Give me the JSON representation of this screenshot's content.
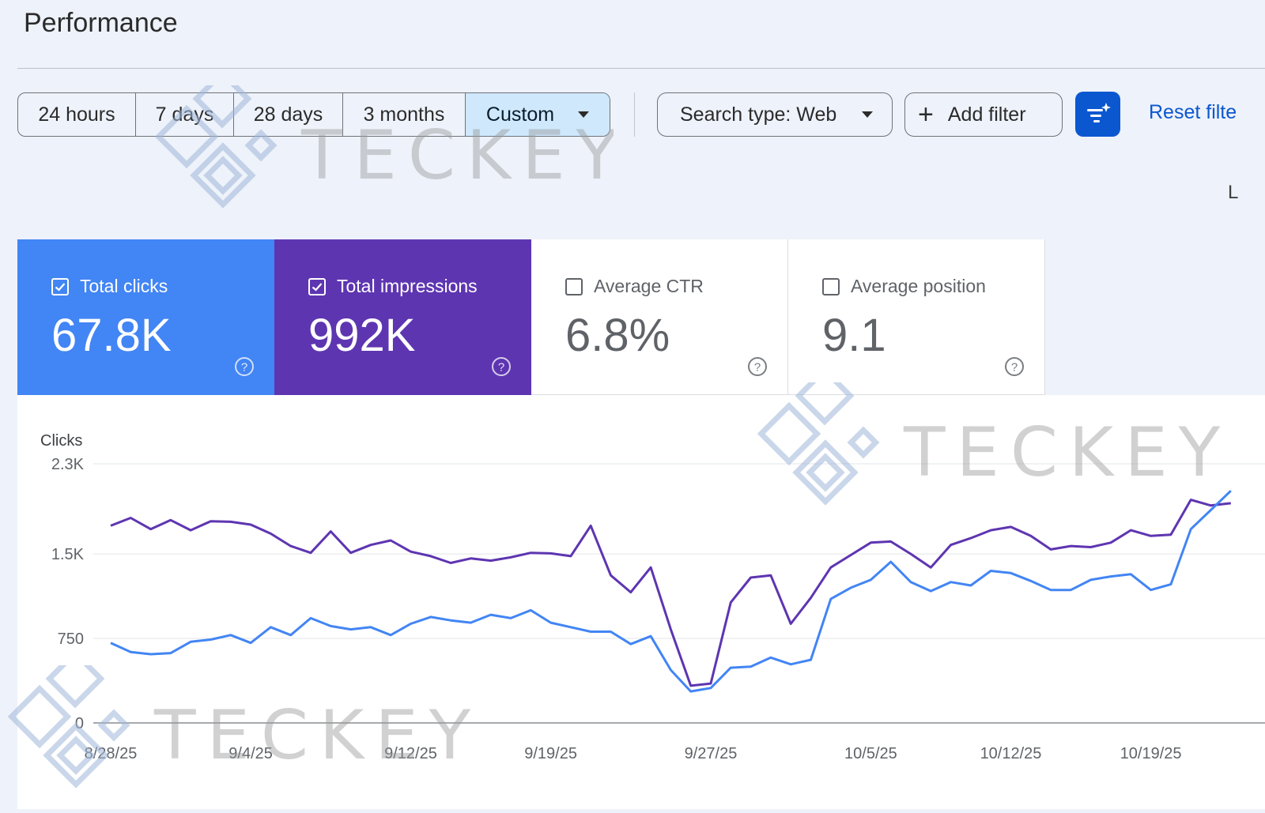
{
  "page": {
    "title": "Performance"
  },
  "toolbar": {
    "ranges": [
      {
        "label": "24 hours"
      },
      {
        "label": "7 days"
      },
      {
        "label": "28 days"
      },
      {
        "label": "3 months"
      },
      {
        "label": "Custom",
        "selected": true
      }
    ],
    "search_type": "Search type: Web",
    "add_filter": "Add filter",
    "reset_filters": "Reset filte",
    "last_updated_fragment": "L"
  },
  "metrics": {
    "clicks": {
      "label": "Total clicks",
      "value": "67.8K",
      "checked": true,
      "color": "#4285f4"
    },
    "impressions": {
      "label": "Total impressions",
      "value": "992K",
      "checked": true,
      "color": "#5e35b1"
    },
    "ctr": {
      "label": "Average CTR",
      "value": "6.8%",
      "checked": false
    },
    "position": {
      "label": "Average position",
      "value": "9.1",
      "checked": false
    }
  },
  "watermark": {
    "text": "TECKEY"
  },
  "chart_data": {
    "type": "line",
    "ylabel": "Clicks",
    "ylim": [
      0,
      2300
    ],
    "y_ticks": [
      {
        "value": 2300,
        "label": "2.3K"
      },
      {
        "value": 1500,
        "label": "1.5K"
      },
      {
        "value": 750,
        "label": "750"
      },
      {
        "value": 0,
        "label": "0"
      }
    ],
    "x_ticks": [
      {
        "index": 0,
        "label": "8/28/25"
      },
      {
        "index": 7,
        "label": "9/4/25"
      },
      {
        "index": 15,
        "label": "9/12/25"
      },
      {
        "index": 22,
        "label": "9/19/25"
      },
      {
        "index": 30,
        "label": "9/27/25"
      },
      {
        "index": 38,
        "label": "10/5/25"
      },
      {
        "index": 45,
        "label": "10/12/25"
      },
      {
        "index": 52,
        "label": "10/19/25"
      }
    ],
    "x_count": 57,
    "series": [
      {
        "name": "Total impressions",
        "color": "#5e35b1",
        "values": [
          1750,
          1820,
          1720,
          1800,
          1710,
          1790,
          1785,
          1760,
          1680,
          1570,
          1510,
          1700,
          1510,
          1580,
          1620,
          1520,
          1480,
          1420,
          1460,
          1440,
          1470,
          1510,
          1505,
          1480,
          1750,
          1310,
          1160,
          1380,
          830,
          330,
          350,
          1070,
          1290,
          1310,
          880,
          1110,
          1380,
          1490,
          1600,
          1610,
          1500,
          1380,
          1580,
          1640,
          1710,
          1740,
          1660,
          1540,
          1570,
          1560,
          1600,
          1710,
          1660,
          1670,
          1980,
          1930,
          1950
        ]
      },
      {
        "name": "Total clicks",
        "color": "#4285f4",
        "values": [
          710,
          630,
          610,
          620,
          720,
          740,
          780,
          710,
          850,
          780,
          930,
          860,
          830,
          850,
          780,
          880,
          940,
          910,
          890,
          960,
          930,
          1000,
          890,
          850,
          810,
          810,
          700,
          770,
          470,
          280,
          310,
          490,
          500,
          580,
          520,
          560,
          1100,
          1200,
          1270,
          1430,
          1250,
          1170,
          1250,
          1220,
          1350,
          1330,
          1260,
          1180,
          1180,
          1270,
          1300,
          1320,
          1180,
          1230,
          1720,
          1890,
          2060
        ]
      }
    ]
  }
}
